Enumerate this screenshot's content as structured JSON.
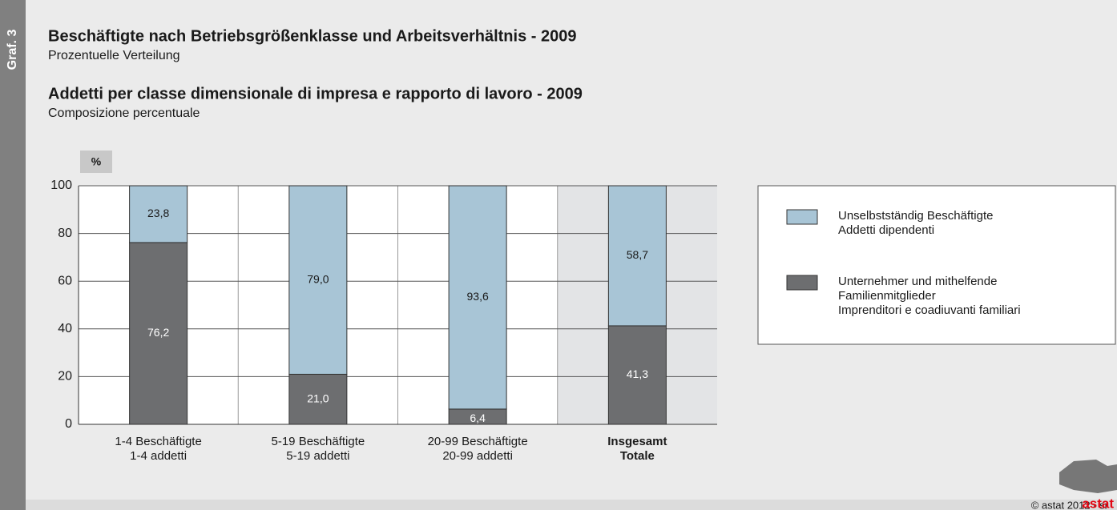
{
  "side_label": "Graf. 3",
  "chart_data": {
    "type": "stacked_bar",
    "title": "Beschäftigte nach Betriebsgrößenklasse und Arbeitsverhältnis - 2009",
    "subtitle": "Prozentuelle Verteilung",
    "title_it": "Addetti per classe dimensionale di impresa e rapporto di lavoro - 2009",
    "subtitle_it": "Composizione percentuale",
    "y_label": "%",
    "categories": [
      "1-4 Beschäftigte\n1-4 addetti",
      "5-19 Beschäftigte\n5-19 addetti",
      "20-99 Beschäftigte\n20-99 addetti",
      "Insgesamt\nTotale"
    ],
    "series": [
      {
        "name": "Unternehmer und mithelfende\nFamilienmitglieder\nImprenditori e coadiuvanti familiari",
        "color": "#6d6e70",
        "values": [
          76.2,
          21.0,
          6.4,
          41.3
        ],
        "value_labels": [
          "76,2",
          "21,0",
          "6,4",
          "41,3"
        ]
      },
      {
        "name": "Unselbstständig Beschäftigte\nAddetti dipendenti",
        "color": "#a8c5d6",
        "values": [
          23.8,
          79.0,
          93.6,
          58.7
        ],
        "value_labels": [
          "23,8",
          "79,0",
          "93,6",
          "58,7"
        ]
      }
    ],
    "ylim": [
      0,
      100
    ],
    "yticks": [
      0,
      20,
      40,
      60,
      80,
      100
    ],
    "grid": true
  },
  "footer": {
    "copyright": "© astat 2012 - sr",
    "logo": "astat"
  }
}
